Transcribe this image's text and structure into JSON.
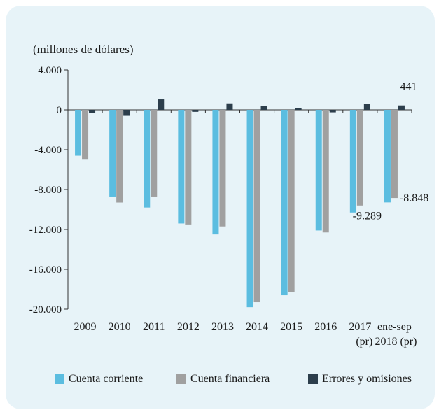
{
  "chart_data": {
    "type": "bar",
    "unit_label": "(millones de dólares)",
    "categories": [
      {
        "line1": "2009",
        "line2": ""
      },
      {
        "line1": "2010",
        "line2": ""
      },
      {
        "line1": "2011",
        "line2": ""
      },
      {
        "line1": "2012",
        "line2": ""
      },
      {
        "line1": "2013",
        "line2": ""
      },
      {
        "line1": "2014",
        "line2": ""
      },
      {
        "line1": "2015",
        "line2": ""
      },
      {
        "line1": "2016",
        "line2": ""
      },
      {
        "line1": "2017",
        "line2": "(pr)"
      },
      {
        "line1": "ene-sep",
        "line2": "2018 (pr)"
      }
    ],
    "series": [
      {
        "name": "Cuenta corriente",
        "color": "#5bbde0",
        "values": [
          -4600,
          -8700,
          -9800,
          -11400,
          -12500,
          -19800,
          -18600,
          -12100,
          -10300,
          -9289
        ]
      },
      {
        "name": "Cuenta financiera",
        "color": "#a0a0a0",
        "values": [
          -5000,
          -9300,
          -8700,
          -11500,
          -11700,
          -19300,
          -18300,
          -12300,
          -9600,
          -8848
        ]
      },
      {
        "name": "Errores y omisiones",
        "color": "#2c3e4c",
        "values": [
          -350,
          -600,
          1050,
          -200,
          650,
          400,
          200,
          -250,
          600,
          441
        ]
      }
    ],
    "data_labels": [
      {
        "text": "-9.289",
        "series": 0,
        "category": 9
      },
      {
        "text": "-8.848",
        "series": 1,
        "category": 9
      },
      {
        "text": "441",
        "series": 2,
        "category": 9
      }
    ],
    "ylim": [
      -20000,
      4000
    ],
    "yticks": [
      "4.000",
      "0",
      "-4.000",
      "-8.000",
      "-12.000",
      "-16.000",
      "-20.000"
    ],
    "ytick_values": [
      4000,
      0,
      -4000,
      -8000,
      -12000,
      -16000,
      -20000
    ],
    "grid": false,
    "legend_position": "bottom"
  }
}
